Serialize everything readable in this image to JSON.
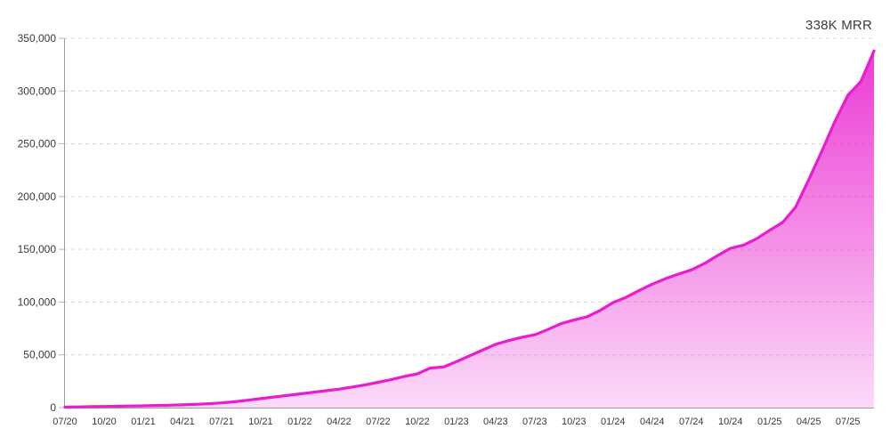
{
  "header": {
    "badge": "338K MRR"
  },
  "chart_data": {
    "type": "area",
    "title": "",
    "xlabel": "",
    "ylabel": "",
    "annotation": "338K MRR",
    "ylim": [
      0,
      350000
    ],
    "y_tick_step": 50000,
    "y_tick_labels": [
      "0",
      "50,000",
      "100,000",
      "150,000",
      "200,000",
      "250,000",
      "300,000",
      "350,000"
    ],
    "x_tick_labels": [
      "07/20",
      "10/20",
      "01/21",
      "04/21",
      "07/21",
      "10/21",
      "01/22",
      "04/22",
      "07/22",
      "10/22",
      "01/23",
      "04/23",
      "07/23",
      "10/23",
      "01/24",
      "04/24",
      "07/24",
      "10/24",
      "01/25",
      "04/25",
      "07/25"
    ],
    "x_tick_every_n_points": 3,
    "months": [
      "07/20",
      "08/20",
      "09/20",
      "10/20",
      "11/20",
      "12/20",
      "01/21",
      "02/21",
      "03/21",
      "04/21",
      "05/21",
      "06/21",
      "07/21",
      "08/21",
      "09/21",
      "10/21",
      "11/21",
      "12/21",
      "01/22",
      "02/22",
      "03/22",
      "04/22",
      "05/22",
      "06/22",
      "07/22",
      "08/22",
      "09/22",
      "10/22",
      "11/22",
      "12/22",
      "01/23",
      "02/23",
      "03/23",
      "04/23",
      "05/23",
      "06/23",
      "07/23",
      "08/23",
      "09/23",
      "10/23",
      "11/23",
      "12/23",
      "01/24",
      "02/24",
      "03/24",
      "04/24",
      "05/24",
      "06/24",
      "07/24",
      "08/24",
      "09/24",
      "10/24",
      "11/24",
      "12/24",
      "01/25",
      "02/25",
      "03/25",
      "04/25",
      "05/25",
      "06/25",
      "07/25",
      "08/25",
      "09/25"
    ],
    "series": [
      {
        "name": "MRR",
        "values": [
          500,
          700,
          900,
          1100,
          1300,
          1500,
          1700,
          2000,
          2300,
          2600,
          3100,
          3700,
          4500,
          5600,
          7000,
          8500,
          10000,
          11500,
          13000,
          14500,
          16000,
          17500,
          19500,
          21500,
          24000,
          26500,
          29500,
          32000,
          37500,
          38500,
          43500,
          49000,
          54500,
          60000,
          63500,
          66500,
          69000,
          74000,
          79500,
          83000,
          86000,
          92000,
          99500,
          104500,
          111000,
          117000,
          122000,
          126500,
          130500,
          136500,
          144000,
          151000,
          154000,
          160000,
          168000,
          175500,
          190000,
          216000,
          243000,
          271000,
          296000,
          309000,
          338000
        ]
      }
    ],
    "grid": "horizontal-dashed",
    "legend": "none",
    "colors": {
      "line": "#E71DCE",
      "fill_top": "rgba(233, 25, 206, 0.85)",
      "fill_bottom": "rgba(233, 25, 206, 0.16)",
      "gridline": "#D9D9D9",
      "axis": "#9C9C9C",
      "tick": "#B5B5B5",
      "label_text": "#3A3A3A"
    }
  }
}
